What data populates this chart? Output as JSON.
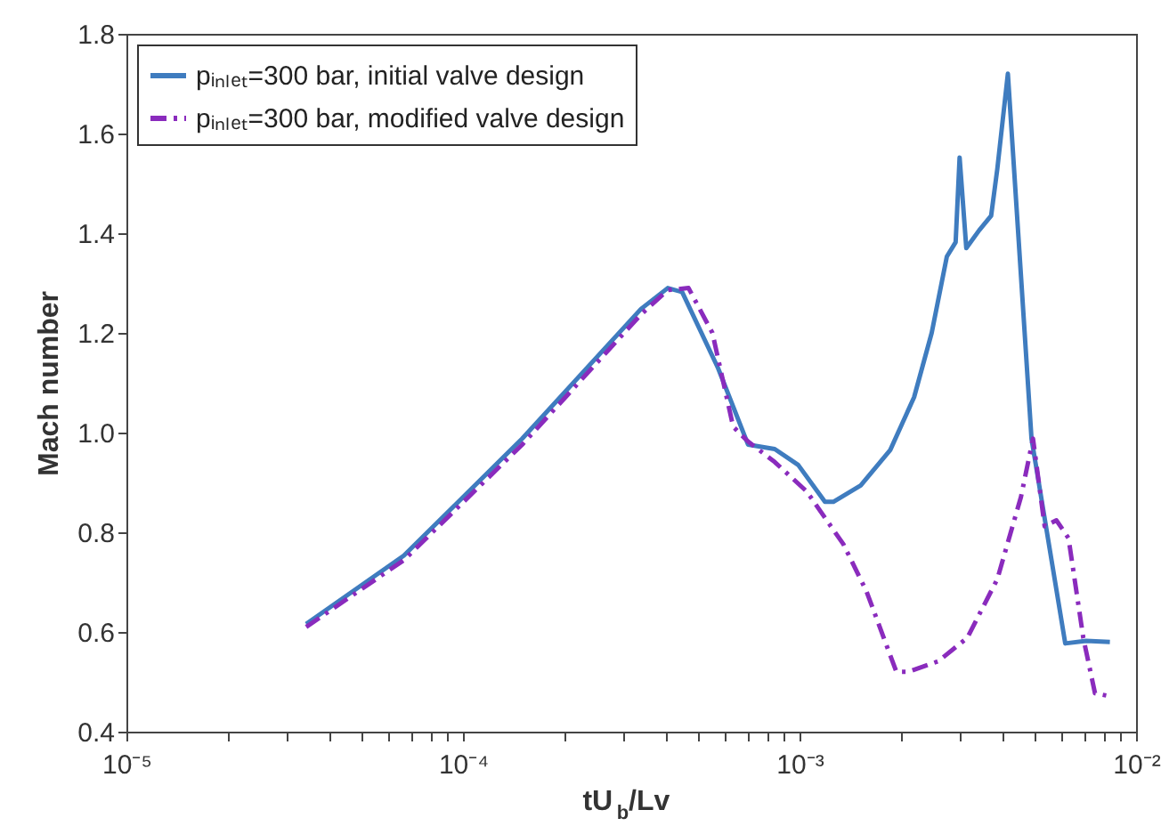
{
  "chart_data": {
    "type": "line",
    "xlabel": "tU$_{b}$/Lv",
    "ylabel": "Mach number",
    "log": "x",
    "xlim": [
      1e-05,
      0.01
    ],
    "ylim": [
      0.4,
      1.8
    ],
    "xticks": [
      {
        "value": 1e-05,
        "label": "10⁻⁵"
      },
      {
        "value": 2e-05,
        "label": null
      },
      {
        "value": 3e-05,
        "label": null
      },
      {
        "value": 4e-05,
        "label": null
      },
      {
        "value": 5e-05,
        "label": null
      },
      {
        "value": 6e-05,
        "label": null
      },
      {
        "value": 7e-05,
        "label": null
      },
      {
        "value": 8e-05,
        "label": null
      },
      {
        "value": 9e-05,
        "label": null
      },
      {
        "value": 0.0001,
        "label": "10⁻⁴"
      },
      {
        "value": 0.0002,
        "label": null
      },
      {
        "value": 0.0003,
        "label": null
      },
      {
        "value": 0.0004,
        "label": null
      },
      {
        "value": 0.0005,
        "label": null
      },
      {
        "value": 0.0006,
        "label": null
      },
      {
        "value": 0.0007,
        "label": null
      },
      {
        "value": 0.0008,
        "label": null
      },
      {
        "value": 0.0009,
        "label": null
      },
      {
        "value": 0.001,
        "label": "10⁻³"
      },
      {
        "value": 0.002,
        "label": null
      },
      {
        "value": 0.003,
        "label": null
      },
      {
        "value": 0.004,
        "label": null
      },
      {
        "value": 0.005,
        "label": null
      },
      {
        "value": 0.006,
        "label": null
      },
      {
        "value": 0.007,
        "label": null
      },
      {
        "value": 0.008,
        "label": null
      },
      {
        "value": 0.009,
        "label": null
      },
      {
        "value": 0.01,
        "label": "10⁻²"
      }
    ],
    "yticks": [
      0.4,
      0.6,
      0.8,
      {
        "value": 1.0,
        "label": "1.0"
      },
      1.2,
      1.4,
      1.6,
      1.8
    ],
    "grid": false,
    "legend": "top left",
    "marker": "none",
    "series": [
      {
        "name": "pᵢₙₗₑₜ=300 bar, initial valve design",
        "color": "#3f7cbf",
        "line_style": "solid",
        "x": [
          3.42e-05,
          6.67e-05,
          0.00015,
          0.000338,
          0.000406,
          0.000448,
          0.000573,
          0.000703,
          0.000844,
          0.000991,
          0.00119,
          0.00126,
          0.00152,
          0.00186,
          0.00219,
          0.00247,
          0.00274,
          0.00291,
          0.00299,
          0.00313,
          0.00342,
          0.00371,
          0.00387,
          0.00416,
          0.00489,
          0.00616,
          0.00711,
          0.00836
        ],
        "values": [
          0.616,
          0.753,
          0.988,
          1.248,
          1.29,
          1.282,
          1.129,
          0.976,
          0.967,
          0.935,
          0.861,
          0.861,
          0.894,
          0.965,
          1.071,
          1.2,
          1.353,
          1.382,
          1.552,
          1.37,
          1.406,
          1.435,
          1.529,
          1.72,
          0.988,
          0.577,
          0.582,
          0.58
        ]
      },
      {
        "name": "pᵢₙₗₑₜ=300 bar, modified valve design",
        "color": "#8a2bbd",
        "line_style": "dashed",
        "x": [
          3.42e-05,
          6.67e-05,
          0.00015,
          0.000338,
          0.000406,
          0.000468,
          0.000551,
          0.000635,
          0.000703,
          0.000844,
          0.00105,
          0.00135,
          0.00158,
          0.00194,
          0.0021,
          0.00258,
          0.00315,
          0.00387,
          0.00455,
          0.00494,
          0.00535,
          0.0058,
          0.0063,
          0.00697,
          0.00755,
          0.00836
        ],
        "values": [
          0.61,
          0.744,
          0.976,
          1.237,
          1.286,
          1.29,
          1.2,
          1.012,
          0.982,
          0.941,
          0.882,
          0.776,
          0.682,
          0.52,
          0.52,
          0.541,
          0.588,
          0.706,
          0.871,
          0.988,
          0.812,
          0.824,
          0.788,
          0.588,
          0.477,
          0.471
        ]
      }
    ]
  }
}
